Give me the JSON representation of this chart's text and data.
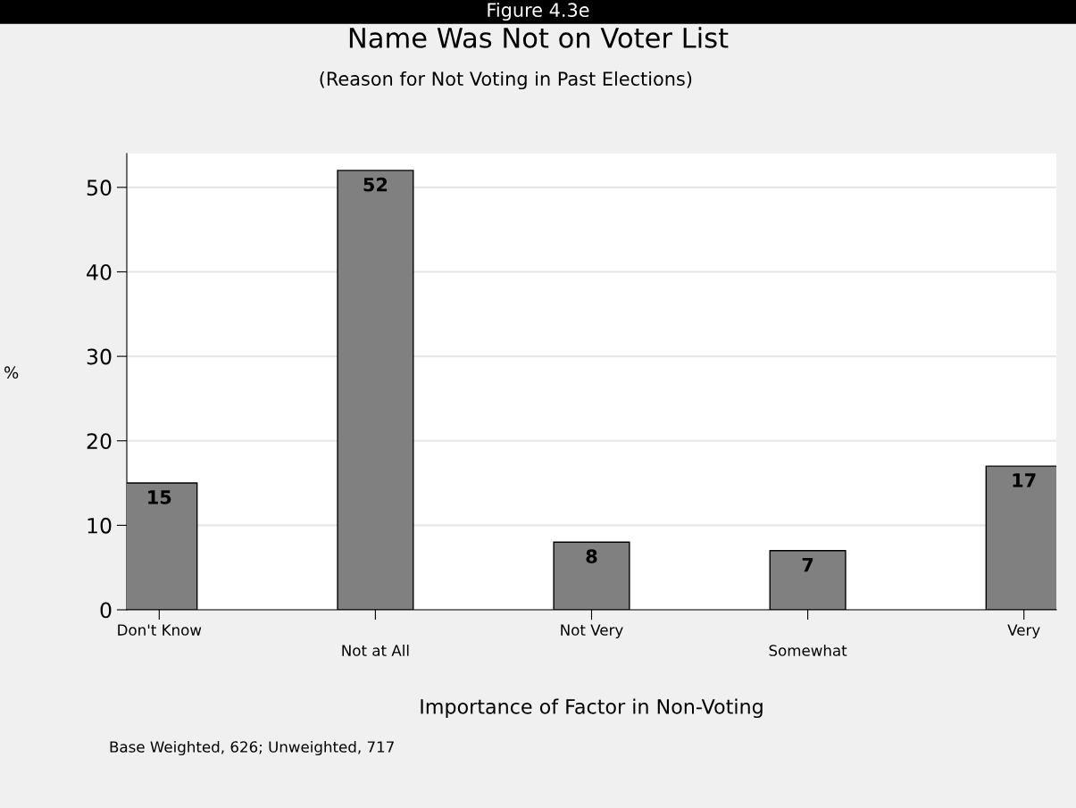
{
  "chart_data": {
    "type": "bar",
    "title": "Name Was Not on Voter List",
    "subtitle": "(Reason for Not Voting in Past Elections)",
    "xlabel": "Importance of Factor in Non-Voting",
    "ylabel": "%",
    "categories": [
      "Don't Know",
      "Not at All",
      "Not Very",
      "Somewhat",
      "Very"
    ],
    "values": [
      15,
      52,
      8,
      7,
      17
    ],
    "color": "#808080",
    "data_labels": true,
    "ylim": [
      0,
      54
    ],
    "yticks": [
      0,
      10,
      20,
      30,
      40,
      50
    ],
    "grid": "y",
    "annotations": [
      "Figure 4.3e",
      "Base Weighted, 626; Unweighted, 717"
    ]
  }
}
